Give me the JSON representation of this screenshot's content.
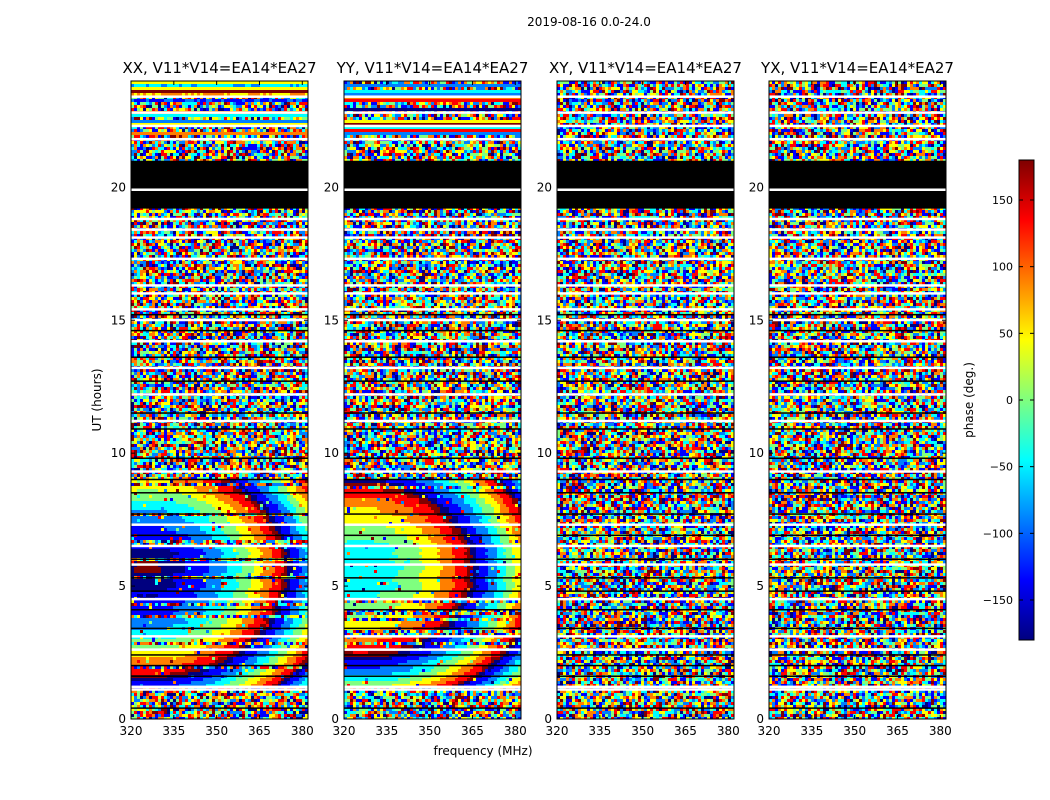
{
  "chart_data": {
    "type": "heatmap",
    "suptitle": "2019-08-16 0.0-24.0",
    "xlabel": "frequency (MHz)",
    "ylabel": "UT (hours)",
    "xlim": [
      320,
      382
    ],
    "ylim": [
      0,
      24
    ],
    "xticks": [
      320,
      335,
      350,
      365,
      380
    ],
    "yticks": [
      0,
      5,
      10,
      15,
      20
    ],
    "colorbar": {
      "label": "phase (deg.)",
      "colormap": "jet",
      "range": [
        -180,
        180
      ],
      "ticks": [
        150,
        100,
        50,
        0,
        -50,
        -100,
        -150
      ],
      "tick_labels": [
        "150",
        "100",
        "50",
        "0",
        "−50",
        "−100",
        "−150"
      ],
      "colors": [
        "#00007f",
        "#0000ff",
        "#007fff",
        "#00ffff",
        "#7fff7f",
        "#ffff00",
        "#ff7f00",
        "#ff0000",
        "#7f0000"
      ]
    },
    "panels": [
      {
        "title": "XX, V11*V14=EA14*EA27",
        "pattern": "coherent"
      },
      {
        "title": "YY, V11*V14=EA14*EA27",
        "pattern": "coherent"
      },
      {
        "title": "XY, V11*V14=EA14*EA27",
        "pattern": "noisy"
      },
      {
        "title": "YX, V11*V14=EA14*EA27",
        "pattern": "noisy"
      }
    ],
    "flagged_black_band_hours": [
      19.2,
      21.0
    ],
    "flagged_white_line_hours": [
      1.1,
      1.2,
      2.6,
      3.1,
      4.5,
      5.8,
      6.5,
      7.3,
      9.3,
      11.2,
      12.2,
      13.2,
      14.2,
      15.0,
      15.4,
      16.0,
      16.3,
      17.3,
      18.1,
      18.4,
      18.8,
      19.9,
      21.8,
      22.3,
      22.8,
      23.4
    ]
  }
}
